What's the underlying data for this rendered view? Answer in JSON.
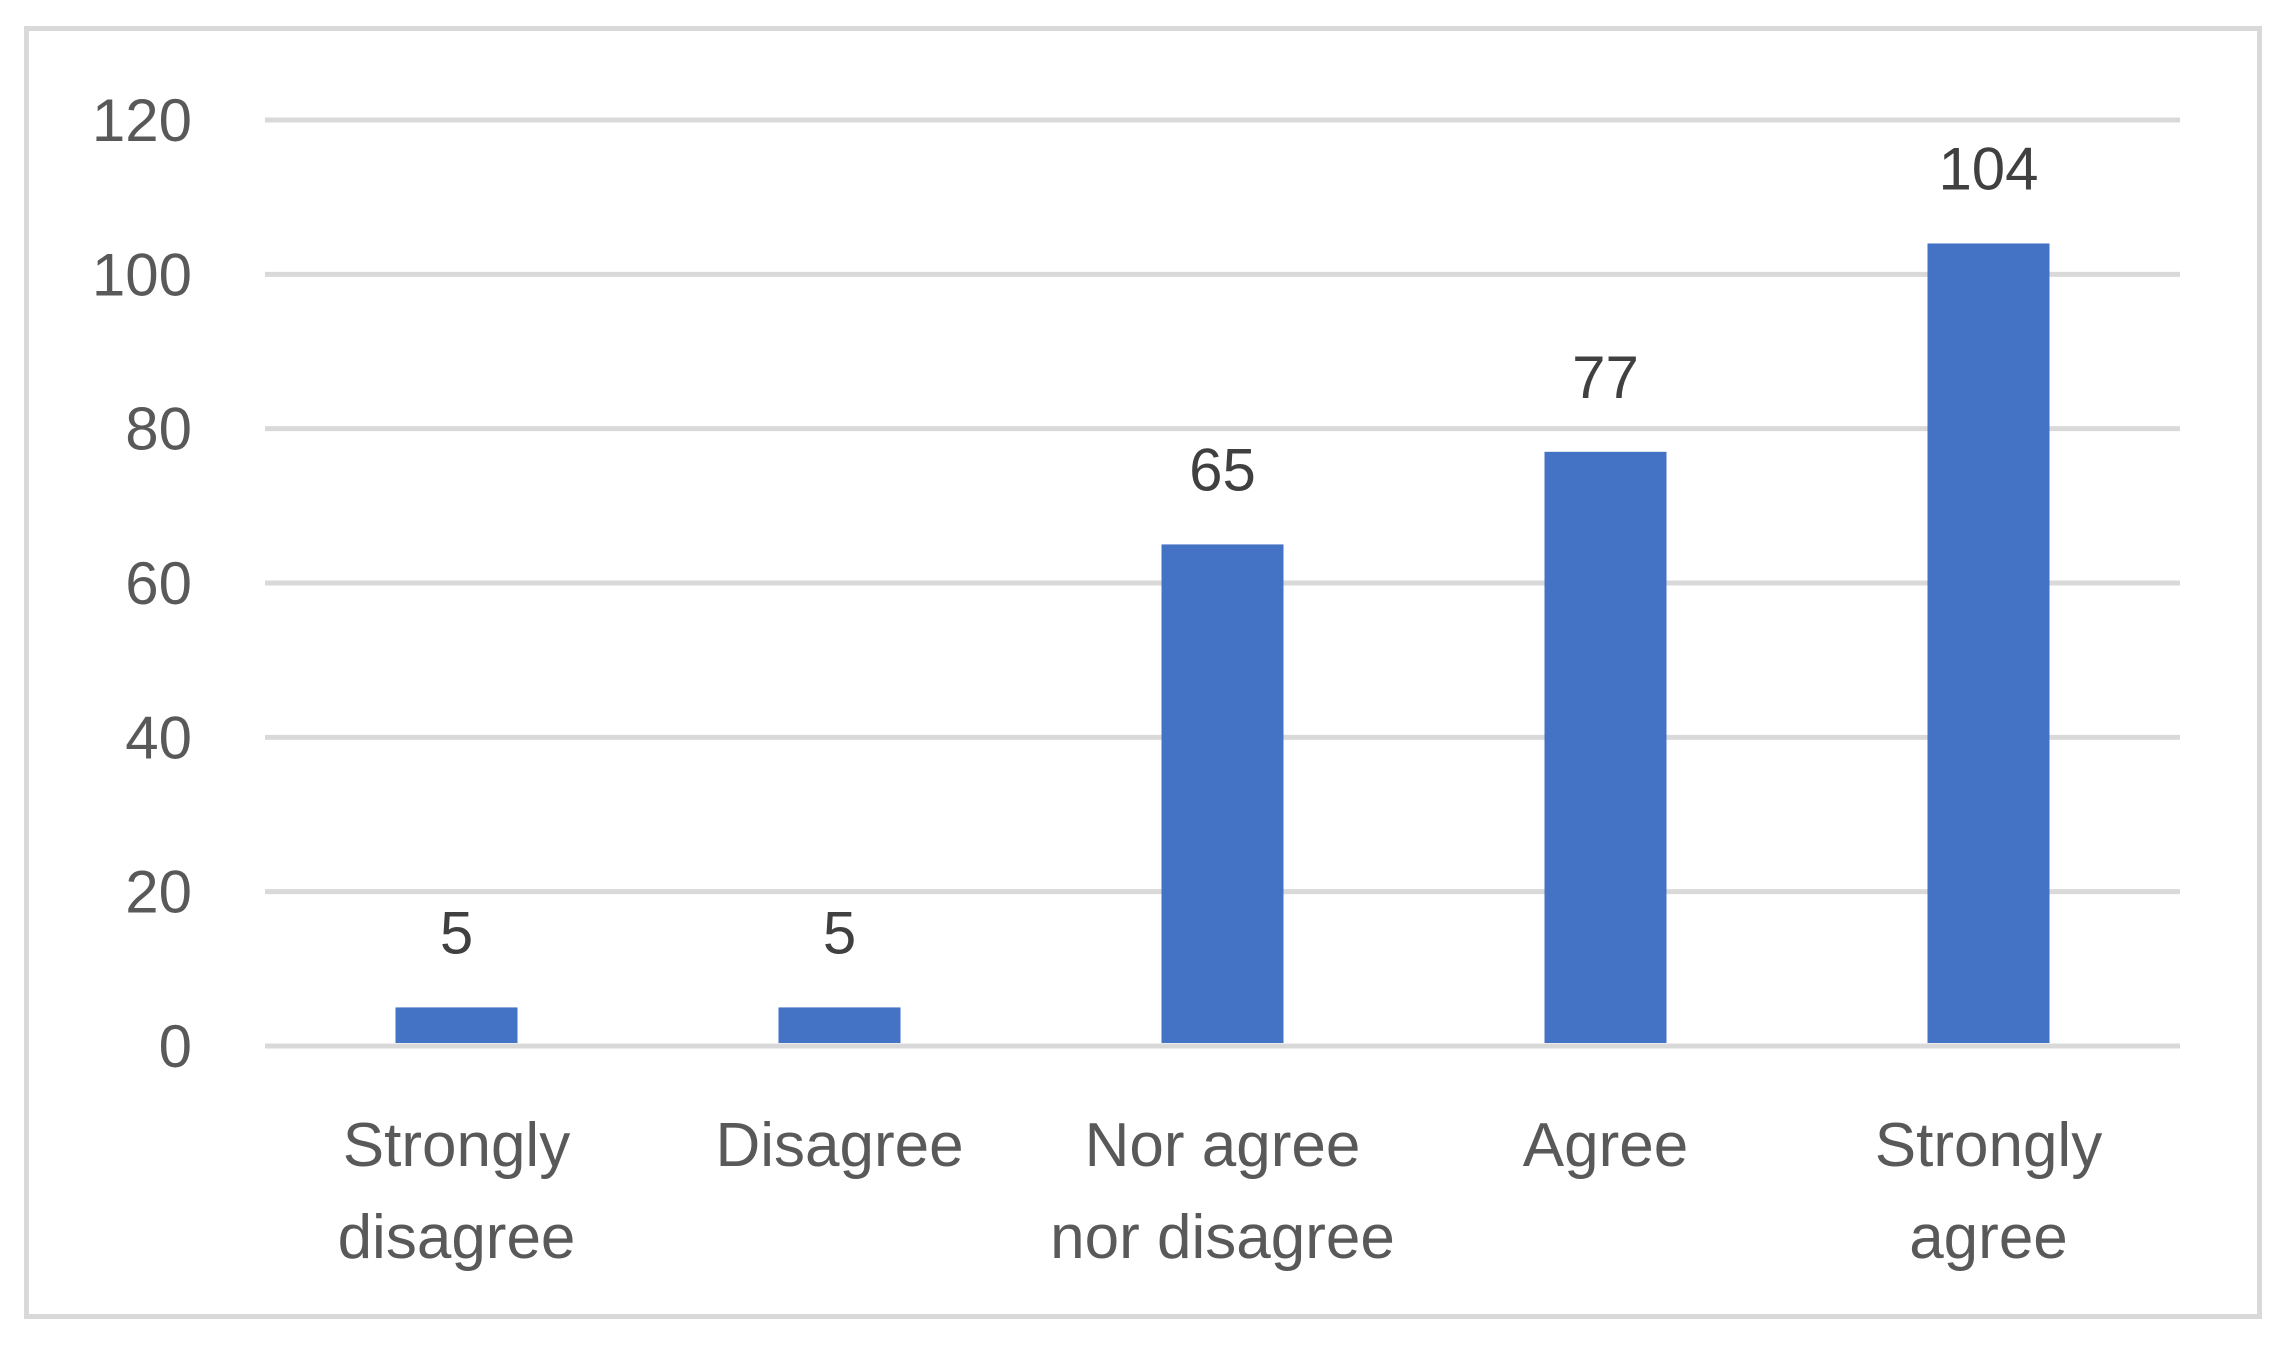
{
  "chart_data": {
    "type": "bar",
    "title": "",
    "xlabel": "",
    "ylabel": "",
    "categories": [
      [
        "Strongly",
        "disagree"
      ],
      [
        "Disagree"
      ],
      [
        "Nor agree",
        "nor disagree"
      ],
      [
        "Agree"
      ],
      [
        "Strongly",
        "agree"
      ]
    ],
    "values": [
      5,
      5,
      65,
      77,
      104
    ],
    "data_labels": [
      "5",
      "5",
      "65",
      "77",
      "104"
    ],
    "yticks": [
      0,
      20,
      40,
      60,
      80,
      100,
      120
    ],
    "ylim": [
      0,
      120
    ],
    "grid": true,
    "legend": "none",
    "colors": {
      "bar": "#4472c4",
      "grid": "#d9d9d9",
      "frame": "#d9d9d9"
    }
  }
}
